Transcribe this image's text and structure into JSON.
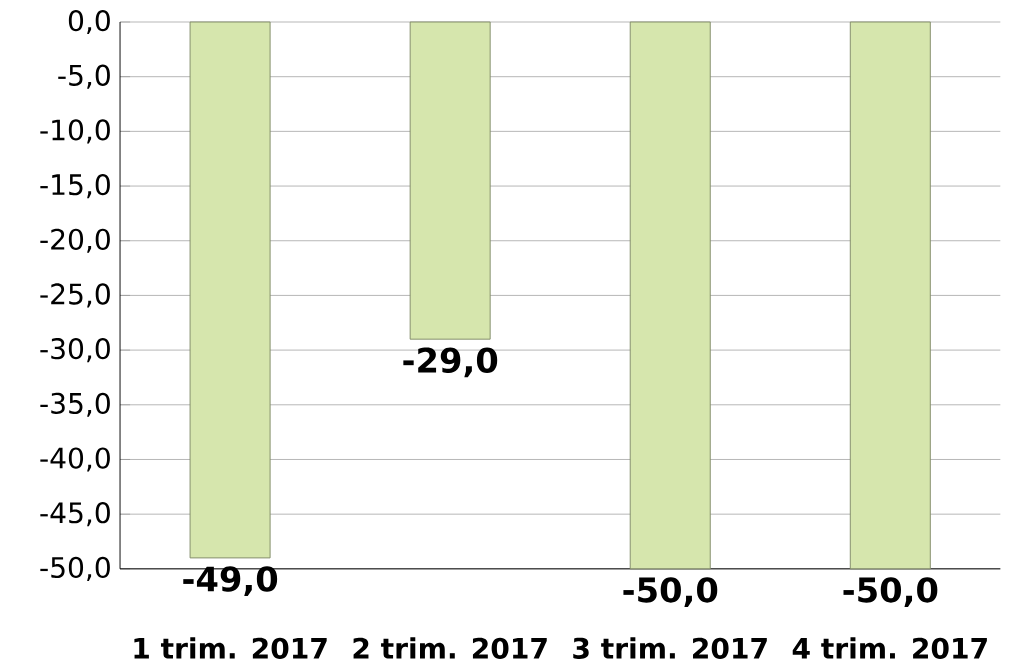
{
  "chart_data": {
    "type": "bar",
    "categories": [
      "1 trim. 2017",
      "2 trim. 2017",
      "3 trim. 2017",
      "4 trim. 2017"
    ],
    "values": [
      -49,
      -29,
      -50,
      -50
    ],
    "value_labels": [
      "-49,0",
      "-29,0",
      "-50,0",
      "-50,0"
    ],
    "color": "#d6e6ad",
    "ylim": [
      -50,
      0
    ],
    "yticks": [
      {
        "value": 0,
        "label": "0,0"
      },
      {
        "value": -5,
        "label": "-5,0"
      },
      {
        "value": -10,
        "label": "-10,0"
      },
      {
        "value": -15,
        "label": "-15,0"
      },
      {
        "value": -20,
        "label": "-20,0"
      },
      {
        "value": -25,
        "label": "-25,0"
      },
      {
        "value": -30,
        "label": "-30,0"
      },
      {
        "value": -35,
        "label": "-35,0"
      },
      {
        "value": -40,
        "label": "-40,0"
      },
      {
        "value": -45,
        "label": "-45,0"
      },
      {
        "value": -50,
        "label": "-50,0"
      }
    ],
    "grid": "y"
  }
}
